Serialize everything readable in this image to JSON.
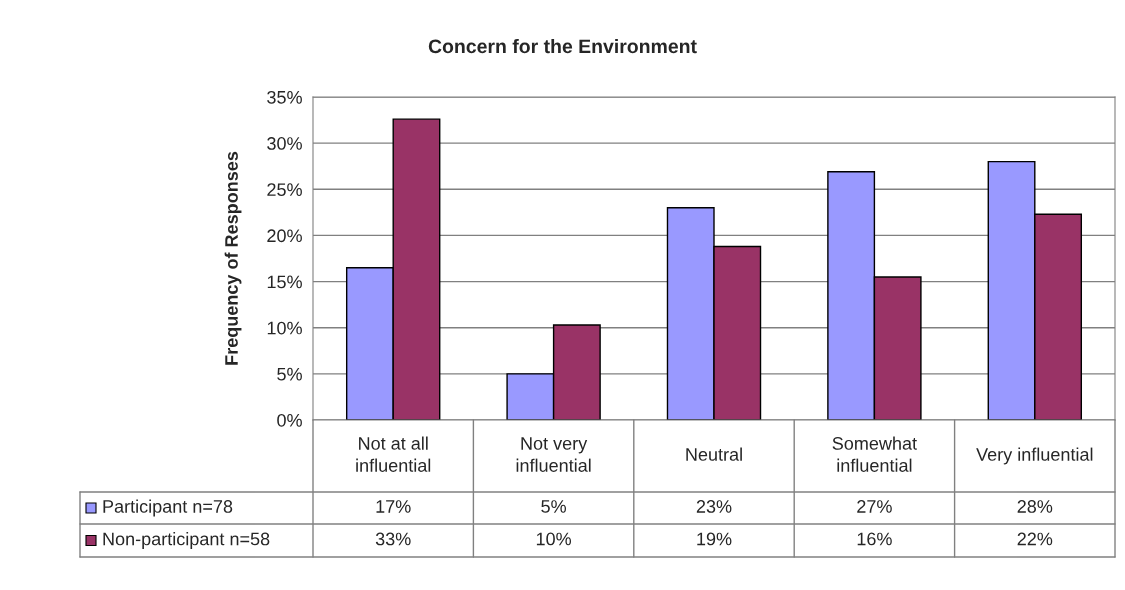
{
  "chart_data": {
    "type": "bar",
    "title": "Concern for the Environment",
    "ylabel": "Frequency of Responses",
    "categories": [
      "Not at all influential",
      "Not very influential",
      "Neutral",
      "Somewhat influential",
      "Very influential"
    ],
    "series": [
      {
        "name": "Participant n=78",
        "color": "#9999ff",
        "values": [
          16.5,
          5.0,
          23.0,
          26.9,
          28.0
        ],
        "value_labels": [
          "17%",
          "5%",
          "23%",
          "27%",
          "28%"
        ]
      },
      {
        "name": "Non-participant n=58",
        "color": "#993366",
        "values": [
          32.6,
          10.3,
          18.8,
          15.5,
          22.3
        ],
        "value_labels": [
          "33%",
          "10%",
          "19%",
          "16%",
          "22%"
        ]
      }
    ],
    "ylim": [
      0,
      35
    ],
    "yticks": [
      {
        "value": 0,
        "label": "0%"
      },
      {
        "value": 5,
        "label": "5%"
      },
      {
        "value": 10,
        "label": "10%"
      },
      {
        "value": 15,
        "label": "15%"
      },
      {
        "value": 20,
        "label": "20%"
      },
      {
        "value": 25,
        "label": "25%"
      },
      {
        "value": 30,
        "label": "30%"
      },
      {
        "value": 35,
        "label": "35%"
      }
    ],
    "grid": "y",
    "legend": "bottom"
  }
}
